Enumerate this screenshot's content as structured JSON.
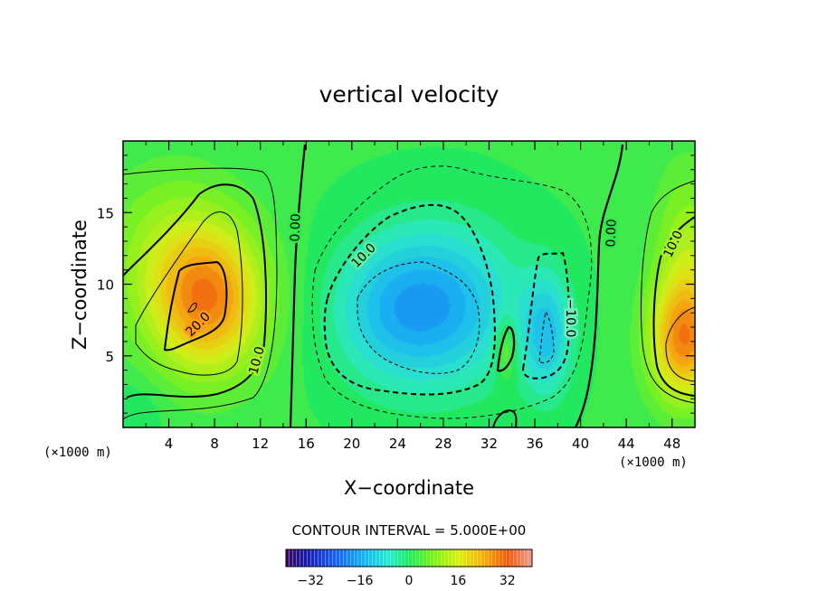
{
  "chart_data": {
    "type": "heatmap",
    "title": "vertical velocity",
    "xlabel": "X−coordinate",
    "ylabel": "Z−coordinate",
    "x_unit_left": "(×1000 m)",
    "x_unit_right": "(×1000 m)",
    "xlim": [
      0,
      50
    ],
    "ylim": [
      0,
      20
    ],
    "x_ticks": [
      "4",
      "8",
      "12",
      "16",
      "20",
      "24",
      "28",
      "32",
      "36",
      "40",
      "44",
      "48"
    ],
    "y_ticks": [
      "5",
      "10",
      "15"
    ],
    "contour_interval_text": "CONTOUR INTERVAL = 5.000E+00",
    "contour_interval": 5.0,
    "colorbar": {
      "range": [
        -40,
        40
      ],
      "ticks": [
        "−32",
        "−16",
        "0",
        "16",
        "32"
      ],
      "tick_values": [
        -32,
        -16,
        0,
        16,
        32
      ]
    },
    "contour_labels": [
      "20.0",
      "10.0",
      "0.00",
      "10.0",
      "0.00",
      "10.0",
      "−10.0"
    ],
    "field_features": [
      {
        "name": "updraft-left",
        "x": 7.5,
        "z": 8.5,
        "value": 26
      },
      {
        "name": "downdraft-center",
        "x": 28.5,
        "z": 8.5,
        "value": -18
      },
      {
        "name": "downdraft-right",
        "x": 37.0,
        "z": 6.0,
        "value": -14
      },
      {
        "name": "updraft-small",
        "x": 33.5,
        "z": 5.5,
        "value": 6
      },
      {
        "name": "updraft-right-edge",
        "x": 48.5,
        "z": 6.5,
        "value": 22
      }
    ],
    "grid": false,
    "legend": "colorbar-bottom"
  }
}
